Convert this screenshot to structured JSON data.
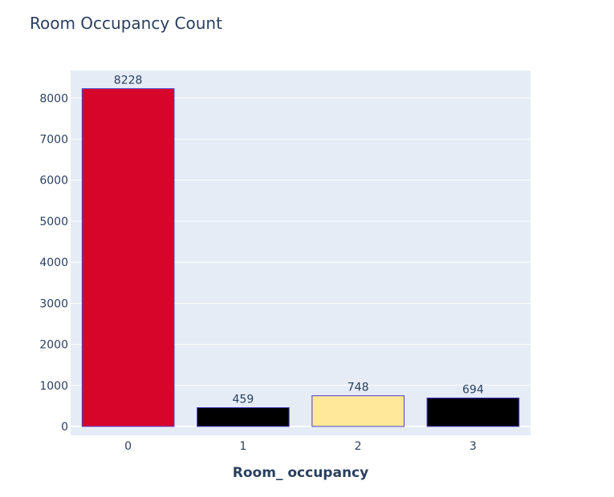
{
  "chart_data": {
    "type": "bar",
    "title": "Room Occupancy Count",
    "xlabel": "Room_ occupancy",
    "ylabel": "",
    "categories": [
      "0",
      "1",
      "2",
      "3"
    ],
    "values": [
      8228,
      459,
      748,
      694
    ],
    "data_labels": [
      "8228",
      "459",
      "748",
      "694"
    ],
    "bar_colors": [
      "#d8052b",
      "#000000",
      "#ffe899",
      "#000000"
    ],
    "bar_outline_color": "#4b3cc8",
    "ylim": [
      0,
      8650
    ],
    "yticks": [
      0,
      1000,
      2000,
      3000,
      4000,
      5000,
      6000,
      7000,
      8000
    ],
    "ytick_labels": [
      "0",
      "1000",
      "2000",
      "3000",
      "4000",
      "5000",
      "6000",
      "7000",
      "8000"
    ],
    "grid": true,
    "legend": "none",
    "plot_background": "#e5ecf6",
    "text_color": "#2a3f5f"
  }
}
